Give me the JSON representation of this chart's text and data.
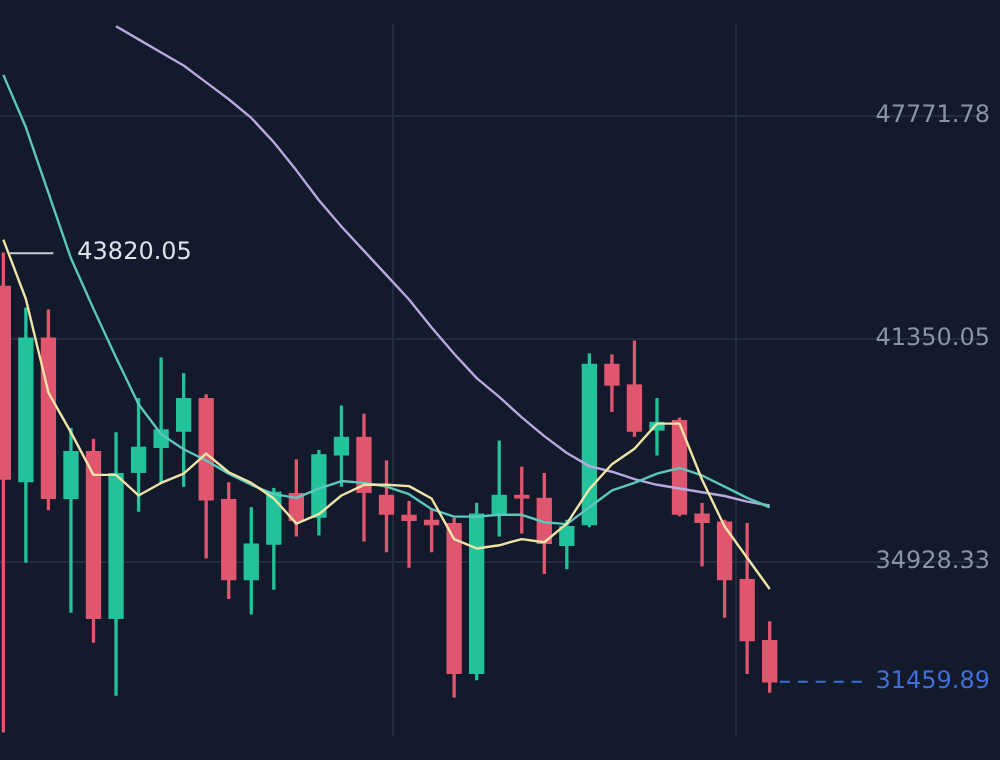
{
  "chart_data": {
    "type": "candlestick",
    "categories": [
      null,
      null,
      null,
      null,
      null,
      null,
      null,
      null,
      null,
      null,
      null,
      null,
      null,
      null,
      null,
      null,
      null,
      null,
      null,
      null,
      null,
      null,
      null,
      null,
      null,
      null,
      null,
      null,
      null,
      null,
      null,
      null,
      null,
      null,
      null
    ],
    "ohlc": [
      [
        42861,
        43820.05,
        30017,
        37303
      ],
      [
        37232,
        42229,
        34912,
        41366
      ],
      [
        41366,
        42175,
        36423,
        36747
      ],
      [
        36747,
        38760,
        33471,
        38096
      ],
      [
        38096,
        38452,
        32608,
        33293
      ],
      [
        33293,
        38636,
        31080,
        37464
      ],
      [
        37502,
        39623,
        36385,
        38220
      ],
      [
        38220,
        40794,
        37195,
        38722
      ],
      [
        38689,
        40341,
        37103,
        39623
      ],
      [
        39623,
        39731,
        35036,
        36709
      ],
      [
        36709,
        37195,
        33865,
        34405
      ],
      [
        34405,
        36477,
        33417,
        35430
      ],
      [
        35430,
        37033,
        34135,
        36925
      ],
      [
        36887,
        37858,
        35667,
        36116
      ],
      [
        36207,
        38128,
        35700,
        38004
      ],
      [
        38004,
        39407,
        37103,
        38506
      ],
      [
        38506,
        39175,
        35522,
        36925
      ],
      [
        36833,
        37826,
        35214,
        36293
      ],
      [
        36261,
        36655,
        34766,
        36116
      ],
      [
        36116,
        36423,
        35214,
        35991
      ],
      [
        36024,
        36169,
        31026,
        31707
      ],
      [
        31707,
        36601,
        31528,
        36293
      ],
      [
        36293,
        38398,
        35667,
        36833
      ],
      [
        36833,
        37643,
        35754,
        36763
      ],
      [
        36747,
        37464,
        34588,
        35452
      ],
      [
        35398,
        36116,
        34728,
        35937
      ],
      [
        35991,
        40918,
        35937,
        40611
      ],
      [
        40611,
        40880,
        39262,
        40017
      ],
      [
        40017,
        41280,
        38544,
        38689
      ],
      [
        38722,
        39623,
        38004,
        38938
      ],
      [
        38992,
        39057,
        36250,
        36293
      ],
      [
        36293,
        36601,
        34804,
        36062
      ],
      [
        36062,
        36116,
        33326,
        34405
      ],
      [
        34405,
        36024,
        31707,
        32646
      ],
      [
        32646,
        33185,
        31167,
        31459.89
      ]
    ],
    "colors": [
      "#e0566f",
      "#22c39b",
      "#e0566f",
      "#22c39b",
      "#e0566f",
      "#22c39b",
      "#22c39b",
      "#22c39b",
      "#22c39b",
      "#e0566f",
      "#e0566f",
      "#22c39b",
      "#22c39b",
      "#e0566f",
      "#22c39b",
      "#22c39b",
      "#e0566f",
      "#e0566f",
      "#e0566f",
      "#e0566f",
      "#e0566f",
      "#22c39b",
      "#22c39b",
      "#e0566f",
      "#e0566f",
      "#22c39b",
      "#22c39b",
      "#e0566f",
      "#e0566f",
      "#22c39b",
      "#e0566f",
      "#e0566f",
      "#e0566f",
      "#e0566f",
      "#e0566f"
    ],
    "series": [
      {
        "type": "line",
        "color": "#efe3a8",
        "values": [
          44210,
          42499,
          39801,
          38652,
          37427,
          37427,
          36833,
          37195,
          37464,
          38042,
          37502,
          37195,
          36747,
          36023,
          36293,
          36833,
          37141,
          37141,
          37103,
          36747,
          35576,
          35306,
          35397,
          35576,
          35484,
          36023,
          37016,
          37734,
          38182,
          38905,
          38905,
          37286,
          35937,
          35036,
          34135
        ]
      },
      {
        "type": "line",
        "color": "#5cc8bd",
        "values": [
          48959,
          47448,
          45559,
          43670,
          42213,
          40810,
          39461,
          38598,
          38166,
          37842,
          37464,
          37141,
          36871,
          36763,
          37033,
          37249,
          37195,
          37087,
          36871,
          36439,
          36223,
          36223,
          36277,
          36277,
          36061,
          36007,
          36493,
          36979,
          37195,
          37464,
          37626,
          37410,
          37087,
          36763,
          36493
        ]
      },
      {
        "type": "line",
        "color": "#b8a8e0",
        "values": [
          null,
          null,
          null,
          null,
          null,
          50362,
          49984,
          49607,
          49229,
          48743,
          48257,
          47718,
          47016,
          46207,
          45343,
          44588,
          43886,
          43185,
          42483,
          41674,
          40918,
          40217,
          39677,
          39083,
          38544,
          38058,
          37680,
          37518,
          37303,
          37141,
          37033,
          36925,
          36817,
          36655,
          36547
        ]
      }
    ],
    "ylim": [
      29910,
      50415
    ],
    "yticks": [
      34928.33,
      41350.05,
      47771.78
    ],
    "grid": true,
    "tick_labels": "y",
    "ref_lines": [
      {
        "axis": "y",
        "value": 31459.89,
        "label": "31459.89",
        "color": "#3f6fd8",
        "line_style": "dashed"
      }
    ],
    "annotations": [
      "43820.05"
    ]
  }
}
